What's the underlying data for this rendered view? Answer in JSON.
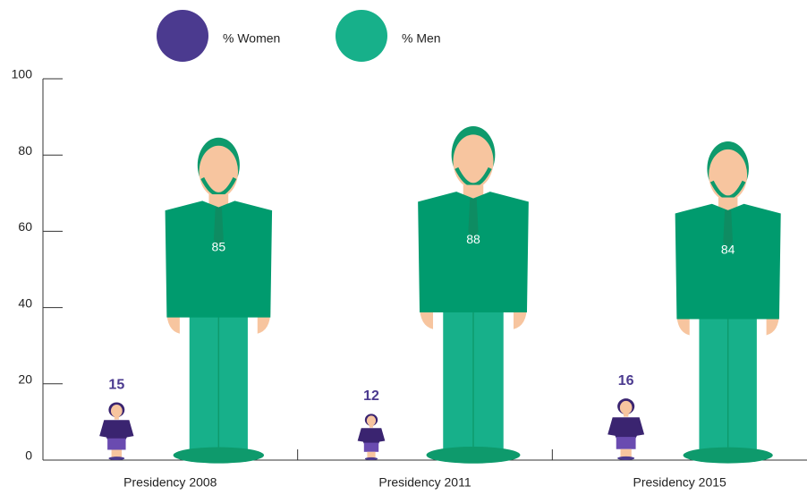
{
  "chart_data": {
    "type": "pictograph",
    "categories": [
      "Presidency 2008",
      "Presidency 2011",
      "Presidency 2015"
    ],
    "series": [
      {
        "name": "% Women",
        "color": "#4b3a8f",
        "values": [
          15,
          12,
          16
        ]
      },
      {
        "name": "% Men",
        "color": "#17b08a",
        "values": [
          85,
          88,
          84
        ]
      }
    ],
    "ylim": [
      0,
      100
    ],
    "yticks": [
      0,
      20,
      40,
      60,
      80,
      100
    ]
  }
}
